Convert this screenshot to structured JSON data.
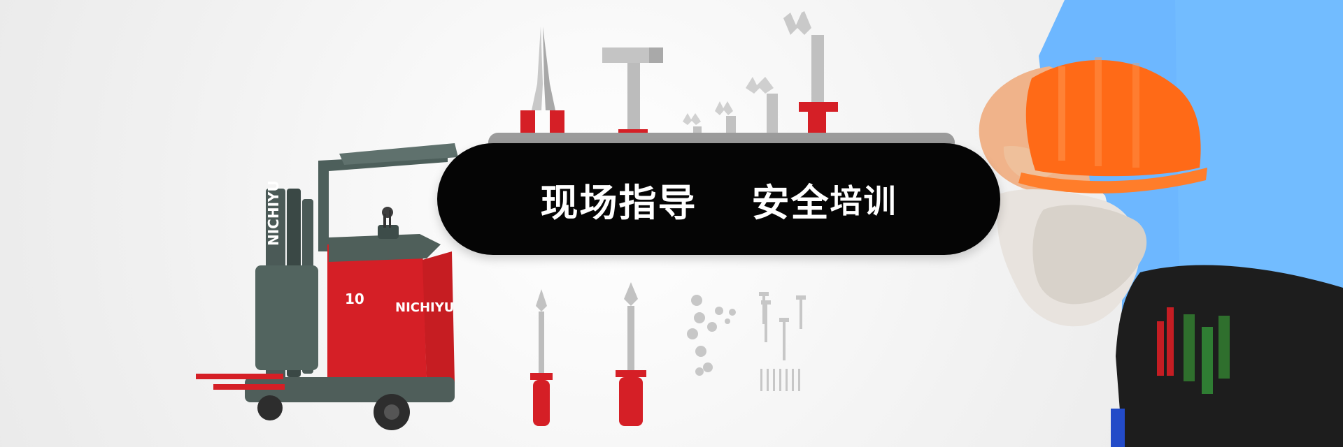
{
  "banner": {
    "headline_part1": "现场指导",
    "headline_part2_large": "安全",
    "headline_part2_small": "培训",
    "forklift_brand": "NICHIYU",
    "forklift_model": "10",
    "forklift_side_brand": "NICHIYU"
  },
  "colors": {
    "background": "#f0f0f0",
    "headline_bg": "#050505",
    "headline_text": "#ffffff",
    "accent_red": "#d51f26",
    "helmet_orange": "#ff6a17",
    "shirt_blue": "#6db7ff"
  },
  "icons": [
    "forklift-illustration",
    "pliers-icon",
    "hammer-icon",
    "wrench-icon",
    "screwdriver-icon",
    "nuts-bolts-icon",
    "hard-hat-icon",
    "work-gloves-icon",
    "tool-belt-icon"
  ]
}
